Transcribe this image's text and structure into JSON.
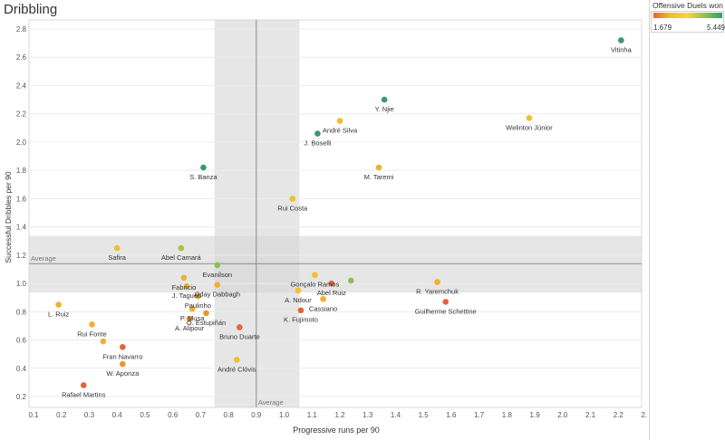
{
  "title": "Dribbling",
  "legend": {
    "title": "Offensive Duels won pe...",
    "min_label": "1.679",
    "max_label": "5.449",
    "colors": [
      "#e2663a",
      "#f0c02a",
      "#f4d63a",
      "#8fbd5a",
      "#3a9a68"
    ]
  },
  "chart_data": {
    "type": "scatter",
    "xlabel": "Progressive runs per 90",
    "ylabel": "Successful Dribbles per 90",
    "xlim": [
      0.1,
      2.3
    ],
    "ylim": [
      0.2,
      2.8
    ],
    "x_ticks": [
      "0.1",
      "0.2",
      "0.3",
      "0.4",
      "0.5",
      "0.6",
      "0.7",
      "0.8",
      "0.9",
      "1.0",
      "1.1",
      "1.2",
      "1.3",
      "1.4",
      "1.5",
      "1.6",
      "1.7",
      "1.8",
      "1.9",
      "2.0",
      "2.1",
      "2.2",
      "2.3"
    ],
    "y_ticks": [
      "0.2",
      "0.4",
      "0.6",
      "0.8",
      "1.0",
      "1.2",
      "1.4",
      "1.6",
      "1.8",
      "2.0",
      "2.2",
      "2.4",
      "2.6",
      "2.8"
    ],
    "average_x": 0.9,
    "average_y": 1.14,
    "average_label": "Average",
    "points": [
      {
        "name": "Vitinha",
        "x": 2.21,
        "y": 2.72,
        "color": "#3a9a68"
      },
      {
        "name": "Y. Njie",
        "x": 1.36,
        "y": 2.3,
        "color": "#3a9a68"
      },
      {
        "name": "André Silva",
        "x": 1.2,
        "y": 2.15,
        "color": "#f0c02a"
      },
      {
        "name": "J. Boselli",
        "x": 1.12,
        "y": 2.06,
        "color": "#3a9a68"
      },
      {
        "name": "Welinton Júnior",
        "x": 1.88,
        "y": 2.17,
        "color": "#f0c02a"
      },
      {
        "name": "M. Taremi",
        "x": 1.34,
        "y": 1.82,
        "color": "#f0b030"
      },
      {
        "name": "S. Banza",
        "x": 0.71,
        "y": 1.82,
        "color": "#3a9a68"
      },
      {
        "name": "Rui Costa",
        "x": 1.03,
        "y": 1.6,
        "color": "#f0c02a"
      },
      {
        "name": "Safira",
        "x": 0.4,
        "y": 1.25,
        "color": "#f0c02a"
      },
      {
        "name": "Abel Camará",
        "x": 0.63,
        "y": 1.25,
        "color": "#b0c040"
      },
      {
        "name": "Evanilson",
        "x": 0.76,
        "y": 1.13,
        "color": "#8fbd5a"
      },
      {
        "name": "Fabricio",
        "x": 0.64,
        "y": 1.04,
        "color": "#f0b030"
      },
      {
        "name": "J. Tagueu",
        "x": 0.65,
        "y": 0.98,
        "color": "#f0b030"
      },
      {
        "name": "Oday Dabbagh",
        "x": 0.76,
        "y": 0.99,
        "color": "#f0b030"
      },
      {
        "name": "Gonçalo Ramos",
        "x": 1.11,
        "y": 1.06,
        "color": "#f0c02a"
      },
      {
        "name": "Abel Ruiz",
        "x": 1.17,
        "y": 1.0,
        "color": "#e2663a"
      },
      {
        "name": "R. Yaremchuk",
        "x": 1.55,
        "y": 1.01,
        "color": "#f0b030"
      },
      {
        "name": "A. Ndour",
        "x": 1.05,
        "y": 0.95,
        "color": "#f0c02a"
      },
      {
        "name": "Paulinho",
        "x": 0.69,
        "y": 0.91,
        "color": "#f0b030"
      },
      {
        "name": "Cassiano",
        "x": 1.14,
        "y": 0.89,
        "color": "#f0b030"
      },
      {
        "name": "Guilherme Schettine",
        "x": 1.58,
        "y": 0.87,
        "color": "#e2663a"
      },
      {
        "name": "L. Ruiz",
        "x": 0.19,
        "y": 0.85,
        "color": "#f0b030"
      },
      {
        "name": "P. Musa",
        "x": 0.67,
        "y": 0.82,
        "color": "#f0b030"
      },
      {
        "name": "O. Estupiñán",
        "x": 0.72,
        "y": 0.79,
        "color": "#e8953a"
      },
      {
        "name": "K. Fujimoto",
        "x": 1.06,
        "y": 0.81,
        "color": "#e2663a"
      },
      {
        "name": "A. Alipour",
        "x": 0.66,
        "y": 0.75,
        "color": "#e8953a"
      },
      {
        "name": "Rui Fonte",
        "x": 0.31,
        "y": 0.71,
        "color": "#f0b030"
      },
      {
        "name": "Bruno Duarte",
        "x": 0.84,
        "y": 0.69,
        "color": "#e2663a"
      },
      {
        "name": "Fran Navarro",
        "x": 0.42,
        "y": 0.55,
        "color": "#e2663a"
      },
      {
        "name": "W. Aponza",
        "x": 0.42,
        "y": 0.43,
        "color": "#e8953a"
      },
      {
        "name": "André Clóvis",
        "x": 0.83,
        "y": 0.46,
        "color": "#f0c02a"
      },
      {
        "name": "Rafael Martins",
        "x": 0.28,
        "y": 0.28,
        "color": "#e2663a"
      },
      {
        "name": "",
        "x": 1.24,
        "y": 1.02,
        "color": "#8fbd5a"
      },
      {
        "name": "",
        "x": 0.35,
        "y": 0.59,
        "color": "#f0b030"
      }
    ]
  }
}
